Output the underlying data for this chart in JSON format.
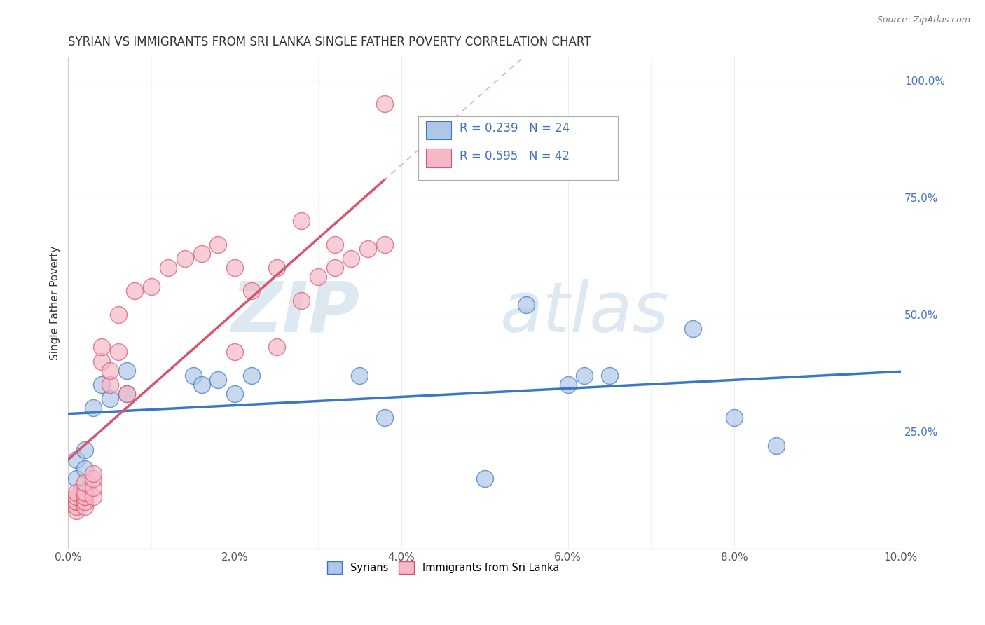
{
  "title": "SYRIAN VS IMMIGRANTS FROM SRI LANKA SINGLE FATHER POVERTY CORRELATION CHART",
  "source": "Source: ZipAtlas.com",
  "ylabel": "Single Father Poverty",
  "xlim": [
    0.0,
    0.1
  ],
  "ylim": [
    0.0,
    1.05
  ],
  "xtick_labels": [
    "0.0%",
    "",
    "2.0%",
    "",
    "4.0%",
    "",
    "6.0%",
    "",
    "8.0%",
    "",
    "10.0%"
  ],
  "xtick_values": [
    0.0,
    0.01,
    0.02,
    0.03,
    0.04,
    0.05,
    0.06,
    0.07,
    0.08,
    0.09,
    0.1
  ],
  "xtick_show": [
    "0.0%",
    "2.0%",
    "4.0%",
    "6.0%",
    "8.0%",
    "10.0%"
  ],
  "xtick_show_vals": [
    0.0,
    0.02,
    0.04,
    0.06,
    0.08,
    0.1
  ],
  "ytick_labels": [
    "25.0%",
    "50.0%",
    "75.0%",
    "100.0%"
  ],
  "ytick_values": [
    0.25,
    0.5,
    0.75,
    1.0
  ],
  "legend_r1": "R = 0.239",
  "legend_n1": "N = 24",
  "legend_r2": "R = 0.595",
  "legend_n2": "N = 42",
  "color_syrians": "#aec6e8",
  "color_sri_lanka": "#f4b8c8",
  "color_line_syrians": "#3b78c4",
  "color_line_sri_lanka": "#d9546c",
  "syrians_x": [
    0.001,
    0.001,
    0.002,
    0.002,
    0.003,
    0.004,
    0.005,
    0.007,
    0.007,
    0.015,
    0.016,
    0.018,
    0.02,
    0.022,
    0.035,
    0.038,
    0.05,
    0.055,
    0.06,
    0.062,
    0.065,
    0.075,
    0.08,
    0.085
  ],
  "syrians_y": [
    0.15,
    0.19,
    0.17,
    0.21,
    0.3,
    0.35,
    0.32,
    0.38,
    0.33,
    0.37,
    0.35,
    0.36,
    0.33,
    0.37,
    0.37,
    0.28,
    0.15,
    0.52,
    0.35,
    0.37,
    0.37,
    0.47,
    0.28,
    0.22
  ],
  "sri_lanka_x": [
    0.001,
    0.001,
    0.001,
    0.001,
    0.001,
    0.001,
    0.002,
    0.002,
    0.002,
    0.002,
    0.002,
    0.003,
    0.003,
    0.003,
    0.003,
    0.004,
    0.004,
    0.005,
    0.005,
    0.006,
    0.006,
    0.007,
    0.008,
    0.01,
    0.012,
    0.014,
    0.016,
    0.018,
    0.02,
    0.022,
    0.025,
    0.028,
    0.03,
    0.032,
    0.034,
    0.036,
    0.038,
    0.02,
    0.025,
    0.028,
    0.032,
    0.038
  ],
  "sri_lanka_y": [
    0.08,
    0.09,
    0.1,
    0.1,
    0.11,
    0.12,
    0.09,
    0.1,
    0.11,
    0.12,
    0.14,
    0.11,
    0.13,
    0.15,
    0.16,
    0.4,
    0.43,
    0.35,
    0.38,
    0.42,
    0.5,
    0.33,
    0.55,
    0.56,
    0.6,
    0.62,
    0.63,
    0.65,
    0.42,
    0.55,
    0.43,
    0.53,
    0.58,
    0.6,
    0.62,
    0.64,
    0.95,
    0.6,
    0.6,
    0.7,
    0.65,
    0.65
  ],
  "background_color": "#ffffff",
  "grid_color": "#cccccc"
}
